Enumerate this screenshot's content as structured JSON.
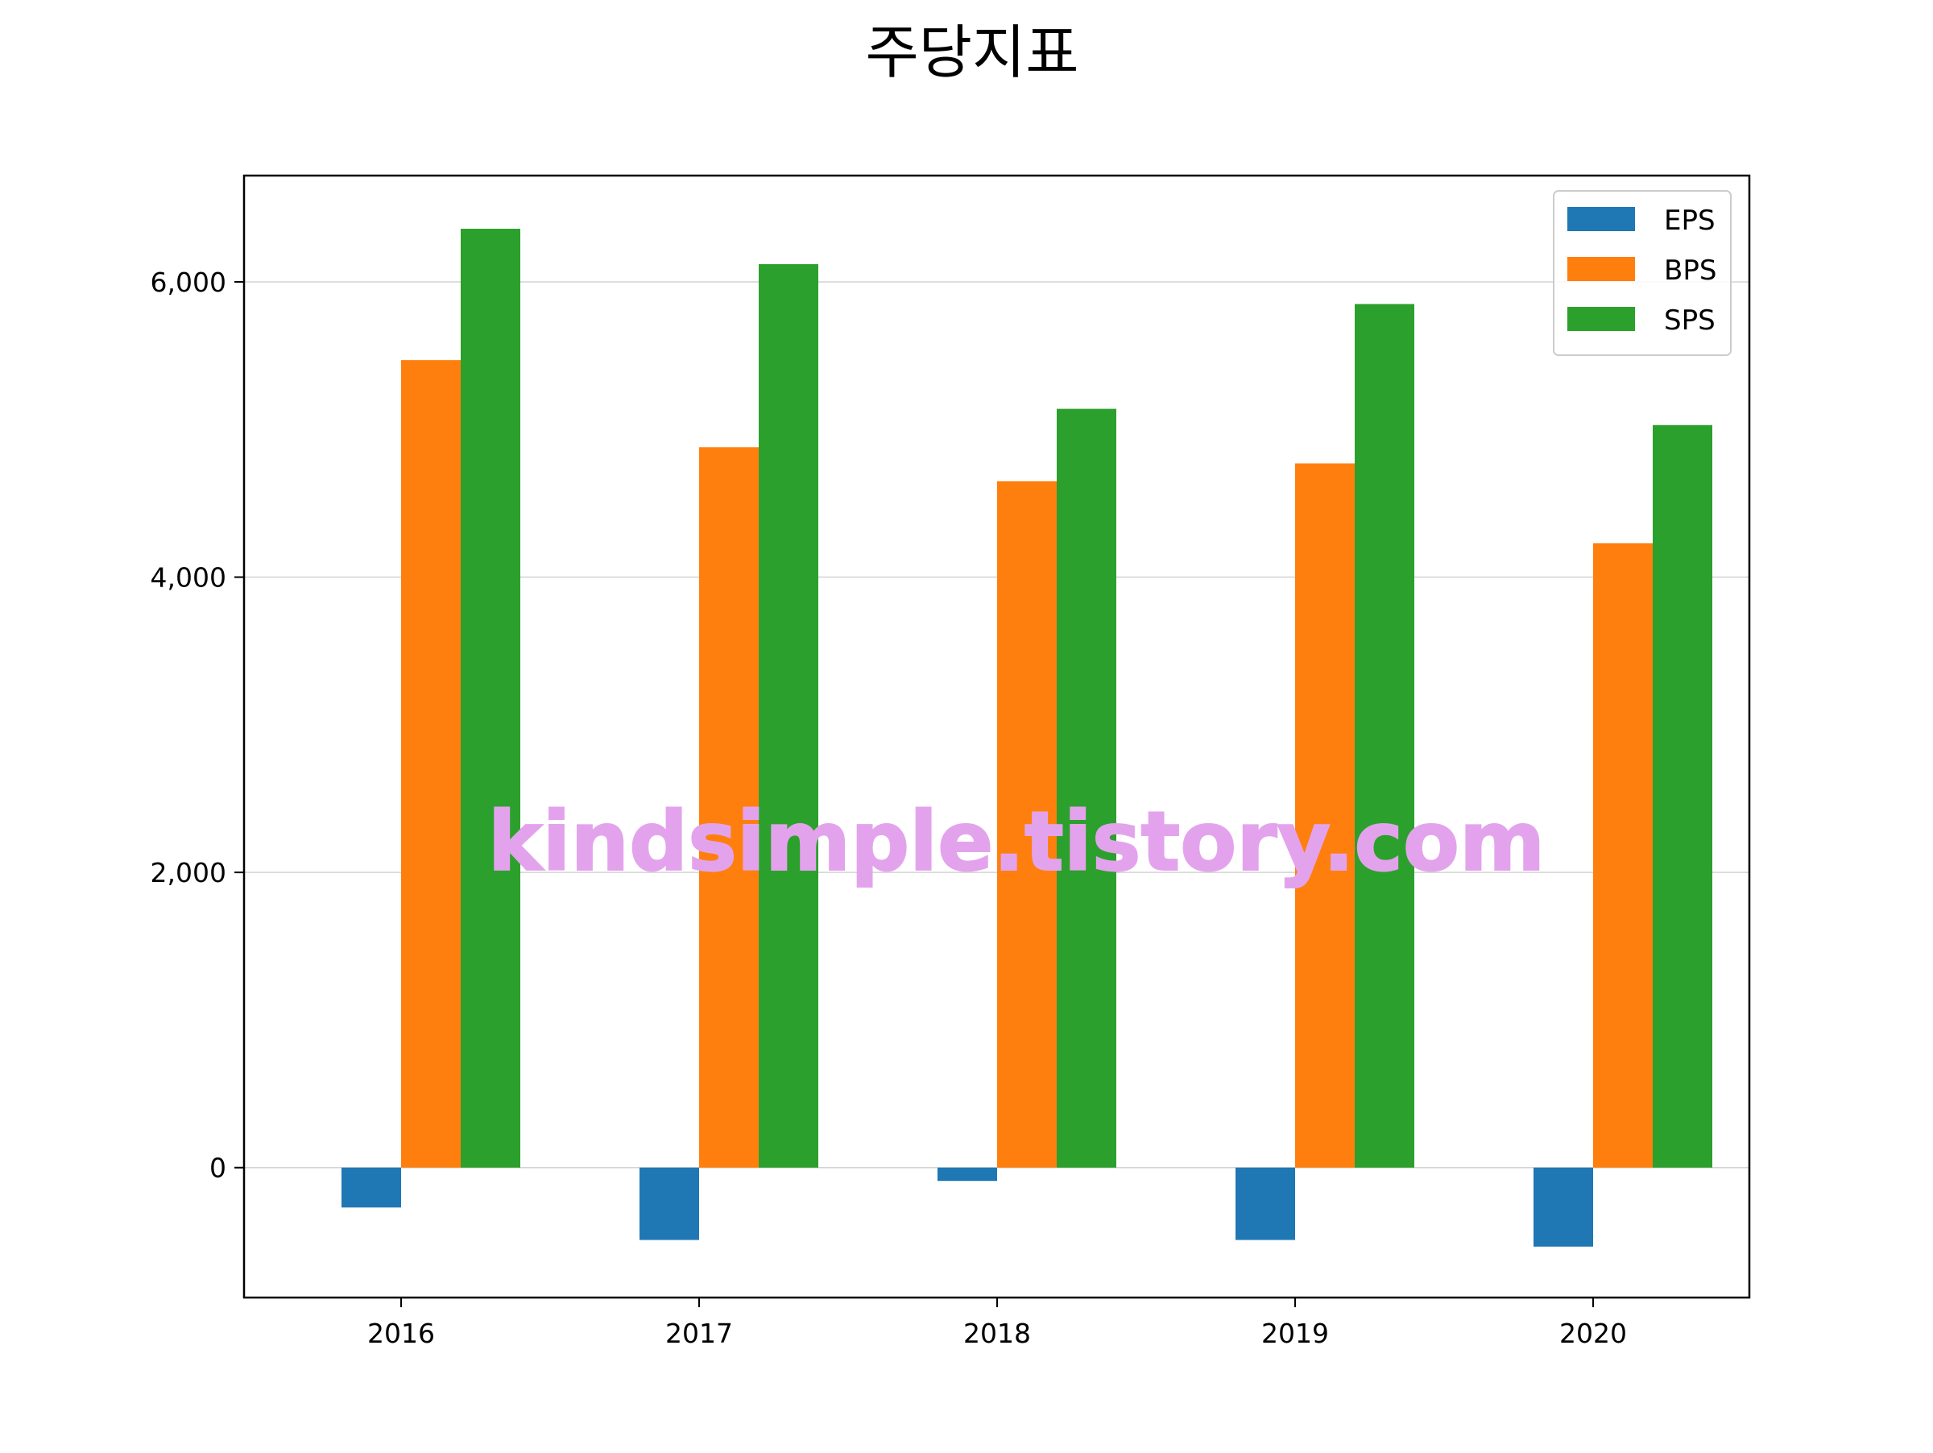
{
  "chart_data": {
    "type": "bar",
    "title": "주당지표",
    "xlabel": "",
    "ylabel": "",
    "categories": [
      "2016",
      "2017",
      "2018",
      "2019",
      "2020"
    ],
    "series": [
      {
        "name": "EPS",
        "color": "#1f77b4",
        "values": [
          -270,
          -490,
          -90,
          -490,
          -535
        ]
      },
      {
        "name": "BPS",
        "color": "#ff7f0e",
        "values": [
          5470,
          4880,
          4650,
          4770,
          4230
        ]
      },
      {
        "name": "SPS",
        "color": "#2ca02c",
        "values": [
          6360,
          6120,
          5140,
          5850,
          5030
        ]
      }
    ],
    "ylim": [
      -880,
      6720
    ],
    "yticks": [
      0,
      2000,
      4000,
      6000
    ],
    "ytick_labels": [
      "0",
      "2,000",
      "4,000",
      "6,000"
    ],
    "grid": "horizontal",
    "legend_position": "top-right",
    "watermark": "kindsimple.tistory.com",
    "watermark_color": "#e3a3ec"
  }
}
